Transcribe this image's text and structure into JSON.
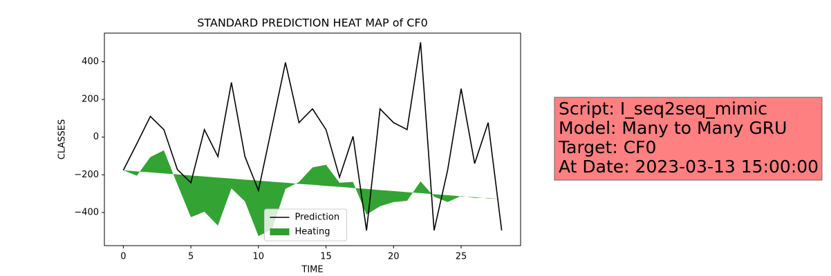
{
  "chart_data": {
    "type": "line",
    "title": "STANDARD PREDICTION HEAT MAP of CF0",
    "x_label": "TIME",
    "y_label": "CLASSES",
    "x": [
      0,
      1,
      2,
      3,
      4,
      5,
      6,
      7,
      8,
      9,
      10,
      11,
      12,
      13,
      14,
      15,
      16,
      17,
      18,
      19,
      20,
      21,
      22,
      23,
      24,
      25,
      26,
      27,
      28
    ],
    "xlim": [
      -1.4,
      29.4
    ],
    "xticks": [
      0,
      5,
      10,
      15,
      20,
      25
    ],
    "ylim": [
      -576,
      552
    ],
    "yticks": [
      {
        "value": -400,
        "label": "−400"
      },
      {
        "value": -200,
        "label": "−200"
      },
      0,
      200,
      400
    ],
    "legend": "lower center",
    "series": [
      {
        "name": "Prediction",
        "color": "#000000",
        "values": [
          -176,
          -35,
          110,
          40,
          -172,
          -242,
          40,
          -103,
          290,
          -103,
          -283,
          55,
          396,
          77,
          150,
          40,
          -213,
          4,
          -495,
          150,
          77,
          40,
          503,
          -495,
          -176,
          257,
          -140,
          77,
          -495
        ]
      },
      {
        "name": "Heating",
        "color": "#2ca02c",
        "kind": "fill_between",
        "values": [
          -176,
          -205,
          -106,
          -70,
          -250,
          -425,
          -396,
          -470,
          -272,
          -341,
          -525,
          -490,
          -275,
          -238,
          -161,
          -147,
          -242,
          -238,
          -411,
          -367,
          -345,
          -338,
          -235,
          -316,
          -345,
          -312,
          -323,
          -323,
          -330
        ],
        "baseline": [
          -176,
          -182,
          -187,
          -193,
          -198,
          -204,
          -209,
          -215,
          -220,
          -226,
          -231,
          -237,
          -242,
          -248,
          -253,
          -259,
          -264,
          -270,
          -275,
          -281,
          -286,
          -292,
          -297,
          -303,
          -308,
          -314,
          -319,
          -325,
          -330
        ]
      }
    ],
    "annotation": {
      "lines": [
        "Script: I_seq2seq_mimic",
        "Model: Many to Many GRU",
        "Target: CF0",
        "At Date: 2023-03-13 15:00:00"
      ],
      "color": "#ff8080"
    }
  }
}
